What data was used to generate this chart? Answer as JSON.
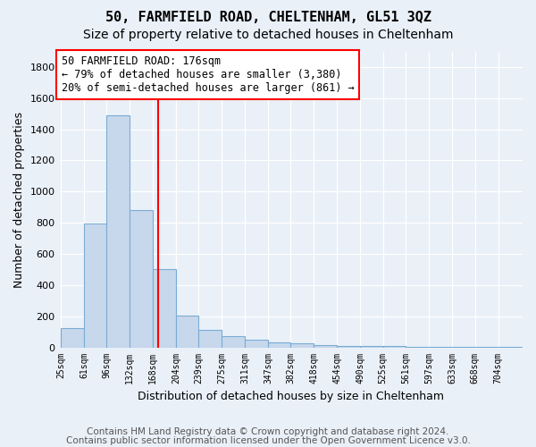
{
  "title1": "50, FARMFIELD ROAD, CHELTENHAM, GL51 3QZ",
  "title2": "Size of property relative to detached houses in Cheltenham",
  "xlabel": "Distribution of detached houses by size in Cheltenham",
  "ylabel": "Number of detached properties",
  "footnote1": "Contains HM Land Registry data © Crown copyright and database right 2024.",
  "footnote2": "Contains public sector information licensed under the Open Government Licence v3.0.",
  "annotation_line1": "50 FARMFIELD ROAD: 176sqm",
  "annotation_line2": "← 79% of detached houses are smaller (3,380)",
  "annotation_line3": "20% of semi-detached houses are larger (861) →",
  "property_size": 176,
  "bar_edges": [
    25,
    61,
    96,
    132,
    168,
    204,
    239,
    275,
    311,
    347,
    382,
    418,
    454,
    490,
    525,
    561,
    597,
    633,
    668,
    704,
    740
  ],
  "bar_heights": [
    125,
    795,
    1490,
    880,
    500,
    205,
    110,
    70,
    50,
    30,
    25,
    15,
    10,
    8,
    8,
    5,
    3,
    2,
    2,
    1
  ],
  "bar_color": "#c8d8ec",
  "bar_edgecolor": "#7aacd4",
  "red_line_x": 176,
  "ylim": [
    0,
    1900
  ],
  "yticks": [
    0,
    200,
    400,
    600,
    800,
    1000,
    1200,
    1400,
    1600,
    1800
  ],
  "plot_bg_color": "#eaf0f8",
  "fig_bg_color": "#eaf0f8",
  "grid_color": "#ffffff",
  "title1_fontsize": 11,
  "title2_fontsize": 10,
  "annotation_fontsize": 8.5,
  "xlabel_fontsize": 9,
  "ylabel_fontsize": 9,
  "footnote_fontsize": 7.5,
  "tick_fontsize": 7
}
